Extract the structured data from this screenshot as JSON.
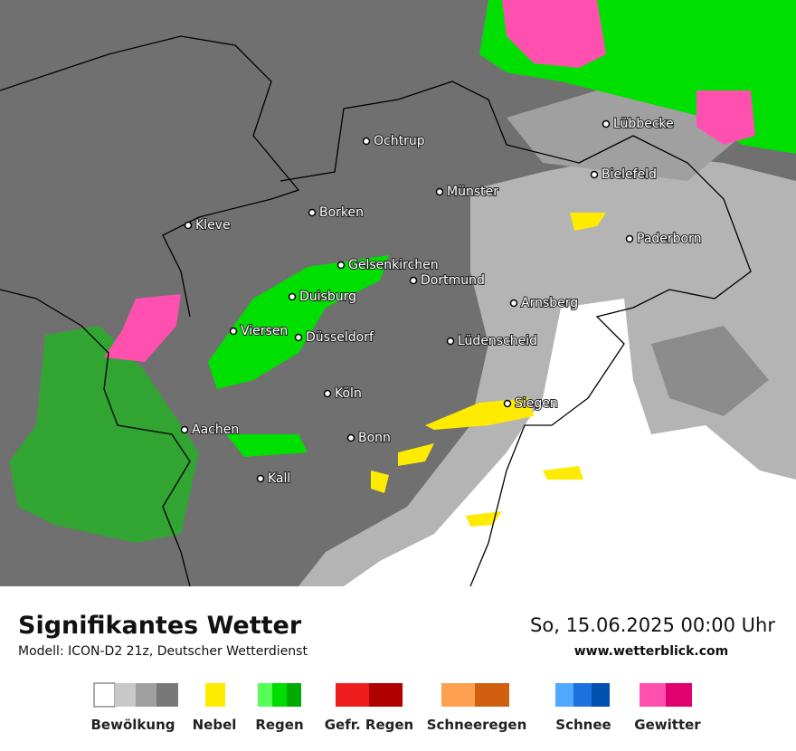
{
  "map": {
    "cities": [
      "Ochtrup",
      "Lübbecke",
      "Bielefeld",
      "Münster",
      "Borken",
      "Kleve",
      "Paderborn",
      "Gelsenkirchen",
      "Dortmund",
      "Duisburg",
      "Arnsberg",
      "Viersen",
      "Düsseldorf",
      "Lüdenscheid",
      "Köln",
      "Siegen",
      "Aachen",
      "Bonn",
      "Kall"
    ]
  },
  "footer": {
    "title": "Signifikantes Wetter",
    "subtitle": "Modell: ICON-D2 21z, Deutscher Wetterdienst",
    "date": "So, 15.06.2025 00:00 Uhr",
    "website": "www.wetterblick.com"
  },
  "legend": [
    "Bewölkung",
    "Nebel",
    "Regen",
    "Gefr. Regen",
    "Schneeregen",
    "Schnee",
    "Gewitter"
  ]
}
